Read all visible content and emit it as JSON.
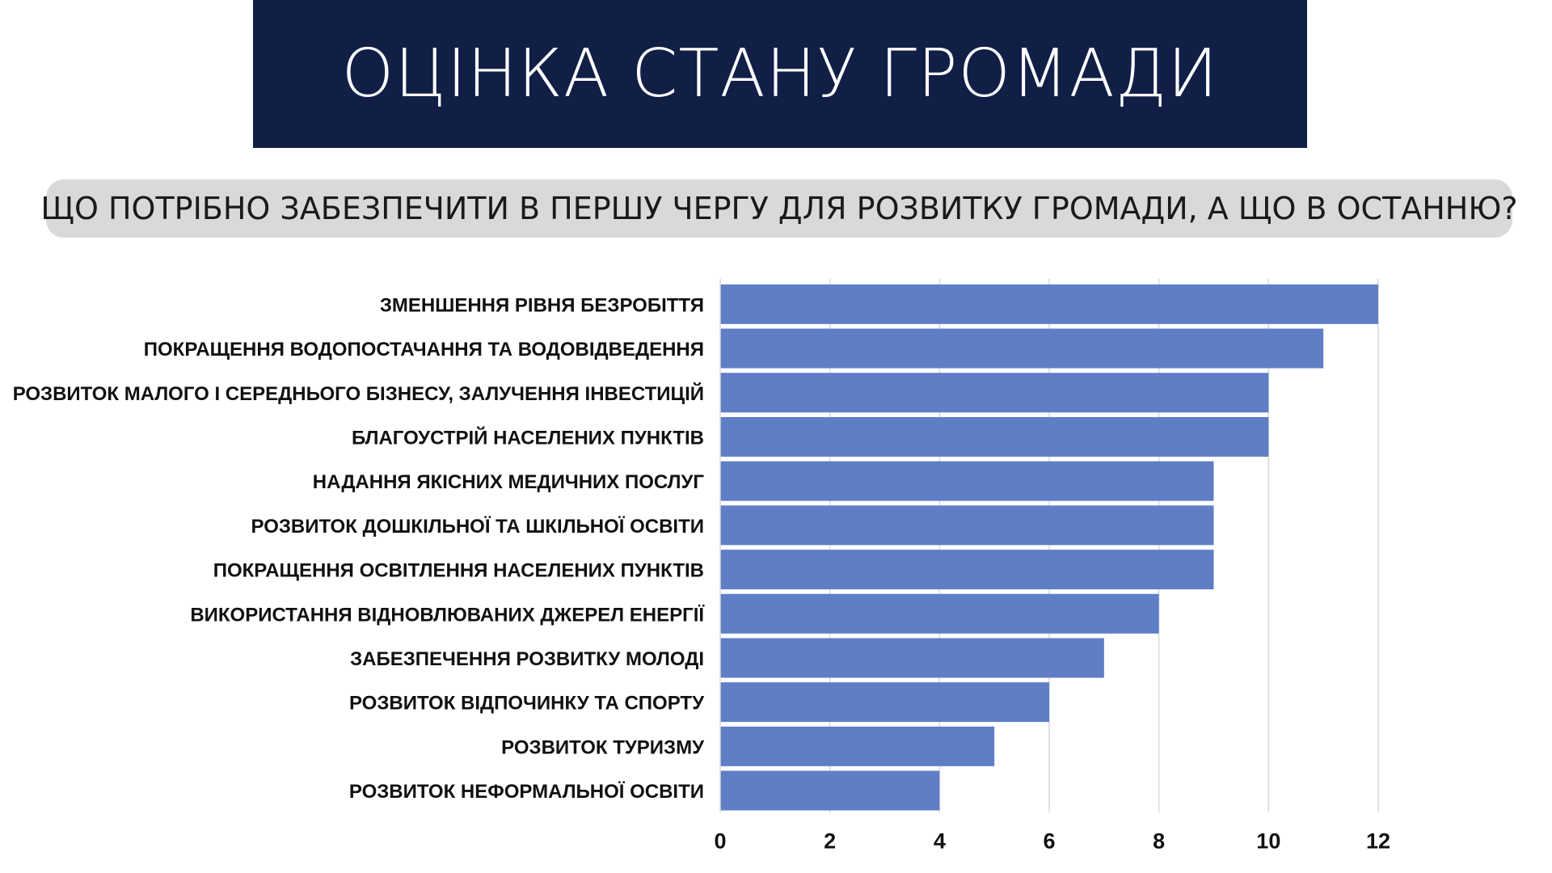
{
  "header": {
    "title": "ОЦІНКА СТАНУ ГРОМАДИ"
  },
  "question": {
    "text": "ЩО ПОТРІБНО ЗАБЕЗПЕЧИТИ В ПЕРШУ ЧЕРГУ ДЛЯ РОЗВИТКУ ГРОМАДИ, А ЩО В ОСТАННЮ?"
  },
  "colors": {
    "banner": "#111f47",
    "pill": "#d9d9d9",
    "bar": "#5f7ec6",
    "grid": "#d9d9d9"
  },
  "chart_data": {
    "type": "bar",
    "orientation": "horizontal",
    "categories": [
      "Зменшення рівня безробіття",
      "Покращення водопостачання та водовідведення",
      "Розвиток малого і середнього бізнесу, залучення інвестицій",
      "Благоустрій населених пунктів",
      "Надання якісних медичних послуг",
      "Розвиток дошкільної та шкільної освіти",
      "Покращення освітлення населених пунктів",
      "Використання відновлюваних джерел енергії",
      "Забезпечення розвитку молоді",
      "Розвиток відпочинку та спорту",
      "Розвиток туризму",
      "Розвиток неформальної освіти"
    ],
    "values": [
      12,
      11,
      10,
      10,
      9,
      9,
      9,
      8,
      7,
      6,
      5,
      4
    ],
    "xlim": [
      0,
      12
    ],
    "xticks": [
      0,
      2,
      4,
      6,
      8,
      10,
      12
    ],
    "grid": true,
    "legend": false
  }
}
